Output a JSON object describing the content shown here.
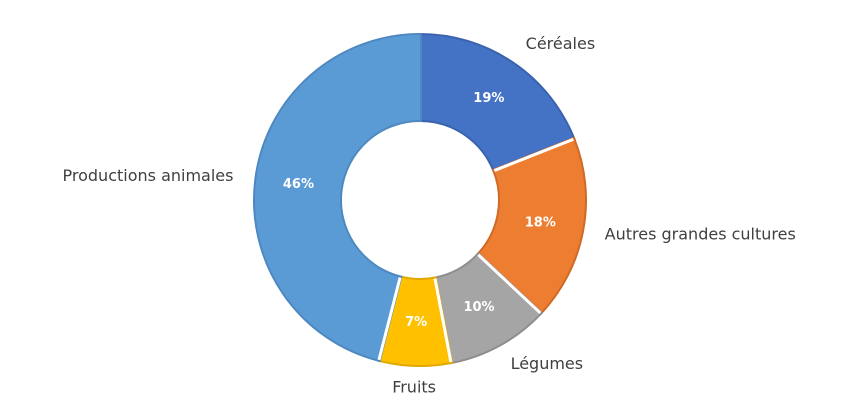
{
  "chart_data": {
    "type": "donut",
    "categories": [
      "Céréales",
      "Autres grandes cultures",
      "Légumes",
      "Fruits",
      "Productions animales"
    ],
    "values": [
      19,
      18,
      10,
      7,
      46
    ],
    "value_labels": [
      "19%",
      "18%",
      "10%",
      "7%",
      "46%"
    ],
    "colors": [
      "#4472c4",
      "#ed7d31",
      "#a5a5a5",
      "#ffc000",
      "#5b9bd5"
    ],
    "edge_colors": [
      "#3a63ad",
      "#d06a26",
      "#8e8e8e",
      "#e0a800",
      "#4d89c0"
    ]
  }
}
